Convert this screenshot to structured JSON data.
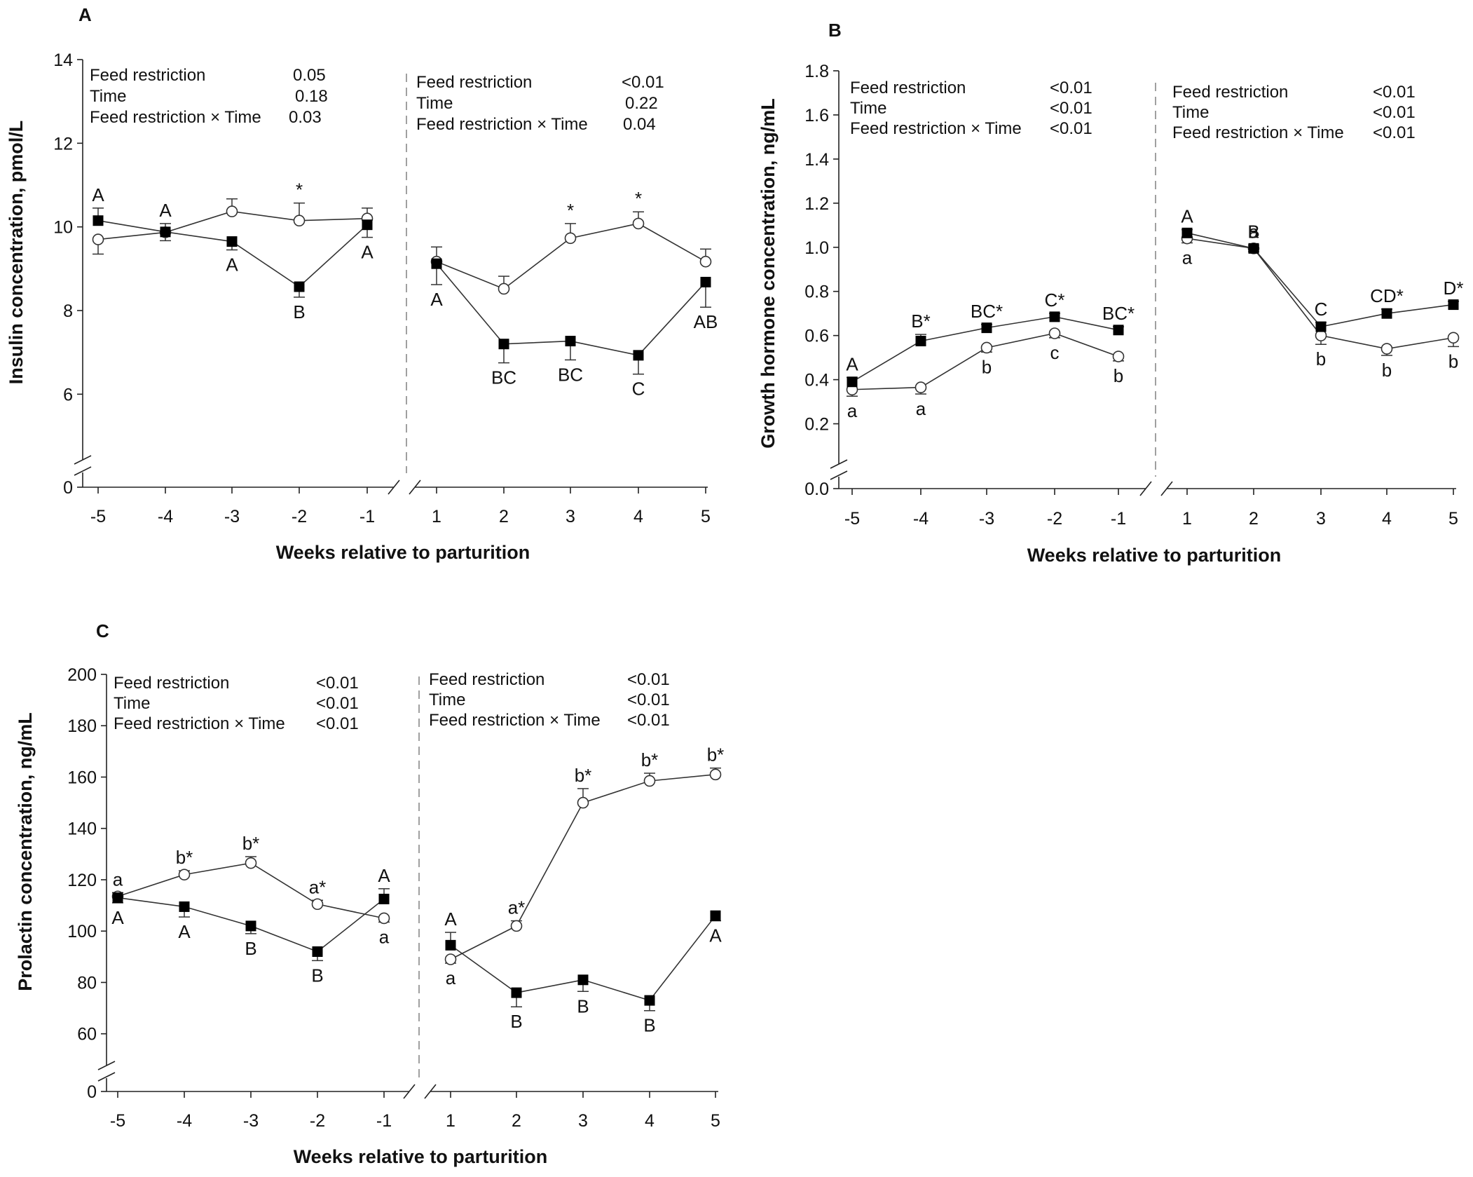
{
  "chart_data": [
    {
      "type": "line",
      "panel": "A",
      "ylabel": "Insulin concentration, pmol/L",
      "xlabel": "Weeks relative to parturition",
      "ylim": [
        0,
        14
      ],
      "y_axis_break": "0 to 5",
      "yticks": [
        0,
        6,
        8,
        10,
        12,
        14
      ],
      "x_pre": [
        "-5",
        "-4",
        "-3",
        "-2",
        "-1"
      ],
      "x_post": [
        "1",
        "2",
        "3",
        "4",
        "5"
      ],
      "stats_pre": [
        {
          "label": "Feed restriction",
          "value": "0.05"
        },
        {
          "label": "Time",
          "value": "0.18"
        },
        {
          "label": "Feed restriction × Time",
          "value": "0.03"
        }
      ],
      "stats_post": [
        {
          "label": "Feed restriction",
          "value": "<0.01"
        },
        {
          "label": "Time",
          "value": "0.22"
        },
        {
          "label": "Feed restriction × Time",
          "value": "0.04"
        }
      ],
      "series": [
        {
          "name": "filled square",
          "marker": "square",
          "pre": [
            10.15,
            9.88,
            9.65,
            8.57,
            10.05
          ],
          "pre_err": [
            0.3,
            0.2,
            0.2,
            0.25,
            0.3
          ],
          "post": [
            9.12,
            7.2,
            7.27,
            6.93,
            8.68
          ],
          "post_err": [
            0.5,
            0.45,
            0.45,
            0.45,
            0.6
          ],
          "pre_labels": [
            "A",
            "A",
            "A",
            "B",
            "A"
          ],
          "post_labels": [
            "A",
            "BC",
            "BC",
            "C",
            "AB"
          ]
        },
        {
          "name": "open circle",
          "marker": "circle",
          "pre": [
            9.7,
            9.87,
            10.37,
            10.15,
            10.2
          ],
          "pre_err": [
            0.35,
            0.2,
            0.3,
            0.42,
            0.25
          ],
          "post": [
            9.17,
            8.52,
            9.73,
            10.08,
            9.17
          ],
          "post_err": [
            0.35,
            0.3,
            0.35,
            0.28,
            0.3
          ],
          "pre_labels": [
            "",
            "",
            "",
            "*",
            ""
          ],
          "post_labels": [
            "",
            "",
            "*",
            "*",
            ""
          ]
        }
      ]
    },
    {
      "type": "line",
      "panel": "B",
      "ylabel": "Growth hormone concentration, ng/mL",
      "xlabel": "Weeks relative to parturition",
      "ylim": [
        0,
        1.8
      ],
      "y_axis_break": "0 to 0.1",
      "yticks": [
        "0.0",
        "0.2",
        "0.4",
        "0.6",
        "0.8",
        "1.0",
        "1.2",
        "1.4",
        "1.6",
        "1.8"
      ],
      "x_pre": [
        "-5",
        "-4",
        "-3",
        "-2",
        "-1"
      ],
      "x_post": [
        "1",
        "2",
        "3",
        "4",
        "5"
      ],
      "stats_pre": [
        {
          "label": "Feed restriction",
          "value": "<0.01"
        },
        {
          "label": "Time",
          "value": "<0.01"
        },
        {
          "label": "Feed restriction × Time",
          "value": "<0.01"
        }
      ],
      "stats_post": [
        {
          "label": "Feed restriction",
          "value": "<0.01"
        },
        {
          "label": "Time",
          "value": "<0.01"
        },
        {
          "label": "Feed restriction × Time",
          "value": "<0.01"
        }
      ],
      "series": [
        {
          "name": "filled square",
          "marker": "square",
          "pre": [
            0.39,
            0.575,
            0.635,
            0.685,
            0.625
          ],
          "pre_err": [
            0.02,
            0.03,
            0.015,
            0.015,
            0.015
          ],
          "post": [
            1.065,
            0.995,
            0.64,
            0.7,
            0.74
          ],
          "post_err": [
            0.015,
            0.015,
            0.02,
            0.02,
            0.015
          ],
          "pre_labels": [
            "A",
            "B*",
            "BC*",
            "C*",
            "BC*"
          ],
          "post_labels": [
            "A",
            "B",
            "C",
            "CD*",
            "D*"
          ]
        },
        {
          "name": "open circle",
          "marker": "circle",
          "pre": [
            0.355,
            0.365,
            0.545,
            0.61,
            0.505
          ],
          "pre_err": [
            0.03,
            0.03,
            0.02,
            0.02,
            0.02
          ],
          "post": [
            1.04,
            0.995,
            0.6,
            0.54,
            0.59
          ],
          "post_err": [
            0.02,
            0.015,
            0.04,
            0.03,
            0.04
          ],
          "pre_labels": [
            "a",
            "a",
            "b",
            "c",
            "b"
          ],
          "post_labels": [
            "a",
            "a",
            "b",
            "b",
            "b"
          ]
        }
      ]
    },
    {
      "type": "line",
      "panel": "C",
      "ylabel": "Prolactin concentration, ng/mL",
      "xlabel": "Weeks relative to parturition",
      "ylim": [
        0,
        200
      ],
      "y_axis_break": "0 to 55",
      "yticks": [
        0,
        60,
        80,
        100,
        120,
        140,
        160,
        180,
        200
      ],
      "x_pre": [
        "-5",
        "-4",
        "-3",
        "-2",
        "-1"
      ],
      "x_post": [
        "1",
        "2",
        "3",
        "4",
        "5"
      ],
      "stats_pre": [
        {
          "label": "Feed restriction",
          "value": "<0.01"
        },
        {
          "label": "Time",
          "value": "<0.01"
        },
        {
          "label": "Feed restriction × Time",
          "value": "<0.01"
        }
      ],
      "stats_post": [
        {
          "label": "Feed restriction",
          "value": "<0.01"
        },
        {
          "label": "Time",
          "value": "<0.01"
        },
        {
          "label": "Feed restriction × Time",
          "value": "<0.01"
        }
      ],
      "series": [
        {
          "name": "filled square",
          "marker": "square",
          "pre": [
            113,
            109.5,
            102,
            92,
            112.5
          ],
          "pre_err": [
            2,
            4,
            3,
            3.5,
            4
          ],
          "post": [
            94.5,
            76,
            81,
            73,
            106
          ],
          "post_err": [
            5,
            5.5,
            4.5,
            4,
            2
          ],
          "pre_labels": [
            "A",
            "A",
            "B",
            "B",
            "A"
          ],
          "post_labels": [
            "A",
            "B",
            "B",
            "B",
            "A"
          ]
        },
        {
          "name": "open circle",
          "marker": "circle",
          "pre": [
            113.5,
            122,
            126.5,
            110.5,
            105
          ],
          "pre_err": [
            1.5,
            1.5,
            2.5,
            1.5,
            1.5
          ],
          "post": [
            89,
            102,
            150,
            158.5,
            161
          ],
          "post_err": [
            1.5,
            2,
            5.5,
            3,
            2.5
          ],
          "pre_labels": [
            "a",
            "b*",
            "b*",
            "a*",
            "a"
          ],
          "post_labels": [
            "a",
            "a*",
            "b*",
            "b*",
            "b*"
          ]
        }
      ]
    }
  ]
}
